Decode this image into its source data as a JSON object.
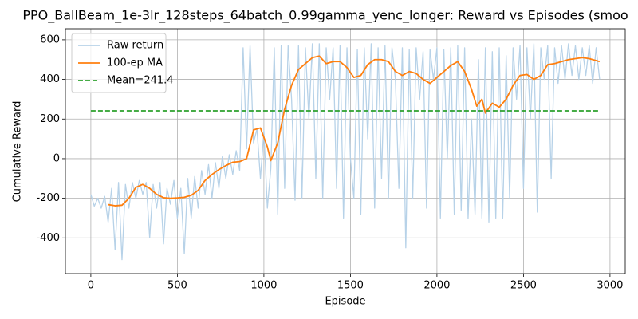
{
  "chart_data": {
    "type": "line",
    "title": "PPO_BallBeam_1e-3lr_128steps_64batch_0.99gamma_yenc_longer: Reward vs Episodes (smoo",
    "x_label": "Episode",
    "y_label": "Cumulative Reward",
    "xlim": [
      -147,
      3088
    ],
    "ylim": [
      -580,
      656
    ],
    "xticks": [
      0,
      500,
      1000,
      1500,
      2000,
      2500,
      3000
    ],
    "yticks": [
      -400,
      -200,
      0,
      200,
      400,
      600
    ],
    "grid": true,
    "legend": "upper left",
    "series": [
      {
        "name": "Raw return",
        "color": "#b7d2e8",
        "linestyle": "solid",
        "x": [
          0,
          20,
          40,
          60,
          80,
          100,
          120,
          140,
          160,
          180,
          200,
          220,
          240,
          260,
          280,
          300,
          320,
          340,
          360,
          380,
          400,
          420,
          440,
          460,
          480,
          500,
          520,
          540,
          560,
          580,
          600,
          620,
          640,
          660,
          680,
          700,
          720,
          740,
          760,
          780,
          800,
          820,
          840,
          860,
          880,
          900,
          920,
          940,
          960,
          980,
          1000,
          1020,
          1040,
          1060,
          1080,
          1100,
          1120,
          1140,
          1160,
          1180,
          1200,
          1220,
          1240,
          1260,
          1280,
          1300,
          1320,
          1340,
          1360,
          1380,
          1400,
          1420,
          1440,
          1460,
          1480,
          1500,
          1520,
          1540,
          1560,
          1580,
          1600,
          1620,
          1640,
          1660,
          1680,
          1700,
          1720,
          1740,
          1760,
          1780,
          1800,
          1820,
          1840,
          1860,
          1880,
          1900,
          1920,
          1940,
          1960,
          1980,
          2000,
          2020,
          2040,
          2060,
          2080,
          2100,
          2120,
          2140,
          2160,
          2180,
          2200,
          2220,
          2240,
          2260,
          2280,
          2300,
          2320,
          2340,
          2360,
          2380,
          2400,
          2420,
          2440,
          2460,
          2480,
          2500,
          2520,
          2540,
          2560,
          2580,
          2600,
          2620,
          2640,
          2660,
          2680,
          2700,
          2720,
          2740,
          2760,
          2780,
          2800,
          2820,
          2840,
          2860,
          2880,
          2900,
          2920,
          2940
        ],
        "values": [
          -180,
          -240,
          -200,
          -250,
          -190,
          -320,
          -150,
          -460,
          -120,
          -510,
          -130,
          -250,
          -120,
          -200,
          -110,
          -180,
          -120,
          -400,
          -130,
          -250,
          -120,
          -430,
          -150,
          -230,
          -110,
          -300,
          -150,
          -480,
          -100,
          -300,
          -90,
          -250,
          -60,
          -180,
          -30,
          -200,
          -20,
          -150,
          10,
          -100,
          20,
          -80,
          40,
          -60,
          560,
          50,
          570,
          80,
          150,
          -100,
          140,
          -250,
          -50,
          560,
          -280,
          570,
          -150,
          570,
          300,
          -210,
          570,
          -200,
          560,
          200,
          580,
          -100,
          580,
          -200,
          560,
          300,
          560,
          -150,
          570,
          -300,
          560,
          0,
          -200,
          550,
          -280,
          560,
          100,
          580,
          -250,
          560,
          -100,
          570,
          -200,
          560,
          400,
          -150,
          560,
          -450,
          550,
          -200,
          560,
          300,
          540,
          -250,
          550,
          400,
          560,
          -300,
          550,
          0,
          560,
          -280,
          570,
          -260,
          560,
          -300,
          200,
          -280,
          500,
          -300,
          560,
          -320,
          540,
          -300,
          560,
          -300,
          520,
          -200,
          560,
          300,
          570,
          -150,
          560,
          200,
          580,
          -270,
          560,
          400,
          570,
          -100,
          560,
          380,
          570,
          400,
          580,
          420,
          570,
          400,
          560,
          420,
          570,
          380,
          560,
          400
        ]
      },
      {
        "name": "100-ep MA",
        "color": "#ff7f0e",
        "linestyle": "solid",
        "x": [
          100,
          140,
          180,
          220,
          260,
          300,
          340,
          380,
          420,
          460,
          500,
          540,
          580,
          620,
          660,
          700,
          740,
          780,
          820,
          860,
          900,
          940,
          980,
          1020,
          1040,
          1080,
          1120,
          1160,
          1200,
          1240,
          1280,
          1320,
          1360,
          1400,
          1440,
          1480,
          1520,
          1560,
          1600,
          1640,
          1680,
          1720,
          1760,
          1800,
          1840,
          1880,
          1920,
          1960,
          2000,
          2040,
          2080,
          2120,
          2160,
          2200,
          2230,
          2260,
          2280,
          2320,
          2360,
          2400,
          2440,
          2480,
          2520,
          2560,
          2600,
          2640,
          2680,
          2720,
          2760,
          2800,
          2840,
          2880,
          2920,
          2940
        ],
        "values": [
          -232,
          -238,
          -235,
          -200,
          -145,
          -130,
          -150,
          -180,
          -197,
          -200,
          -198,
          -195,
          -185,
          -160,
          -110,
          -80,
          -55,
          -35,
          -18,
          -15,
          0,
          145,
          155,
          60,
          -10,
          80,
          250,
          370,
          450,
          480,
          510,
          518,
          480,
          490,
          490,
          460,
          410,
          420,
          475,
          500,
          500,
          490,
          440,
          420,
          440,
          430,
          400,
          380,
          410,
          440,
          470,
          490,
          440,
          350,
          265,
          300,
          230,
          280,
          260,
          300,
          370,
          420,
          425,
          400,
          420,
          475,
          480,
          490,
          500,
          505,
          510,
          505,
          495,
          490
        ]
      },
      {
        "name": "Mean=241.4",
        "color": "#2ca02c",
        "linestyle": "dashed",
        "x": [
          0,
          2940
        ],
        "values": [
          241.4,
          241.4
        ]
      }
    ]
  }
}
